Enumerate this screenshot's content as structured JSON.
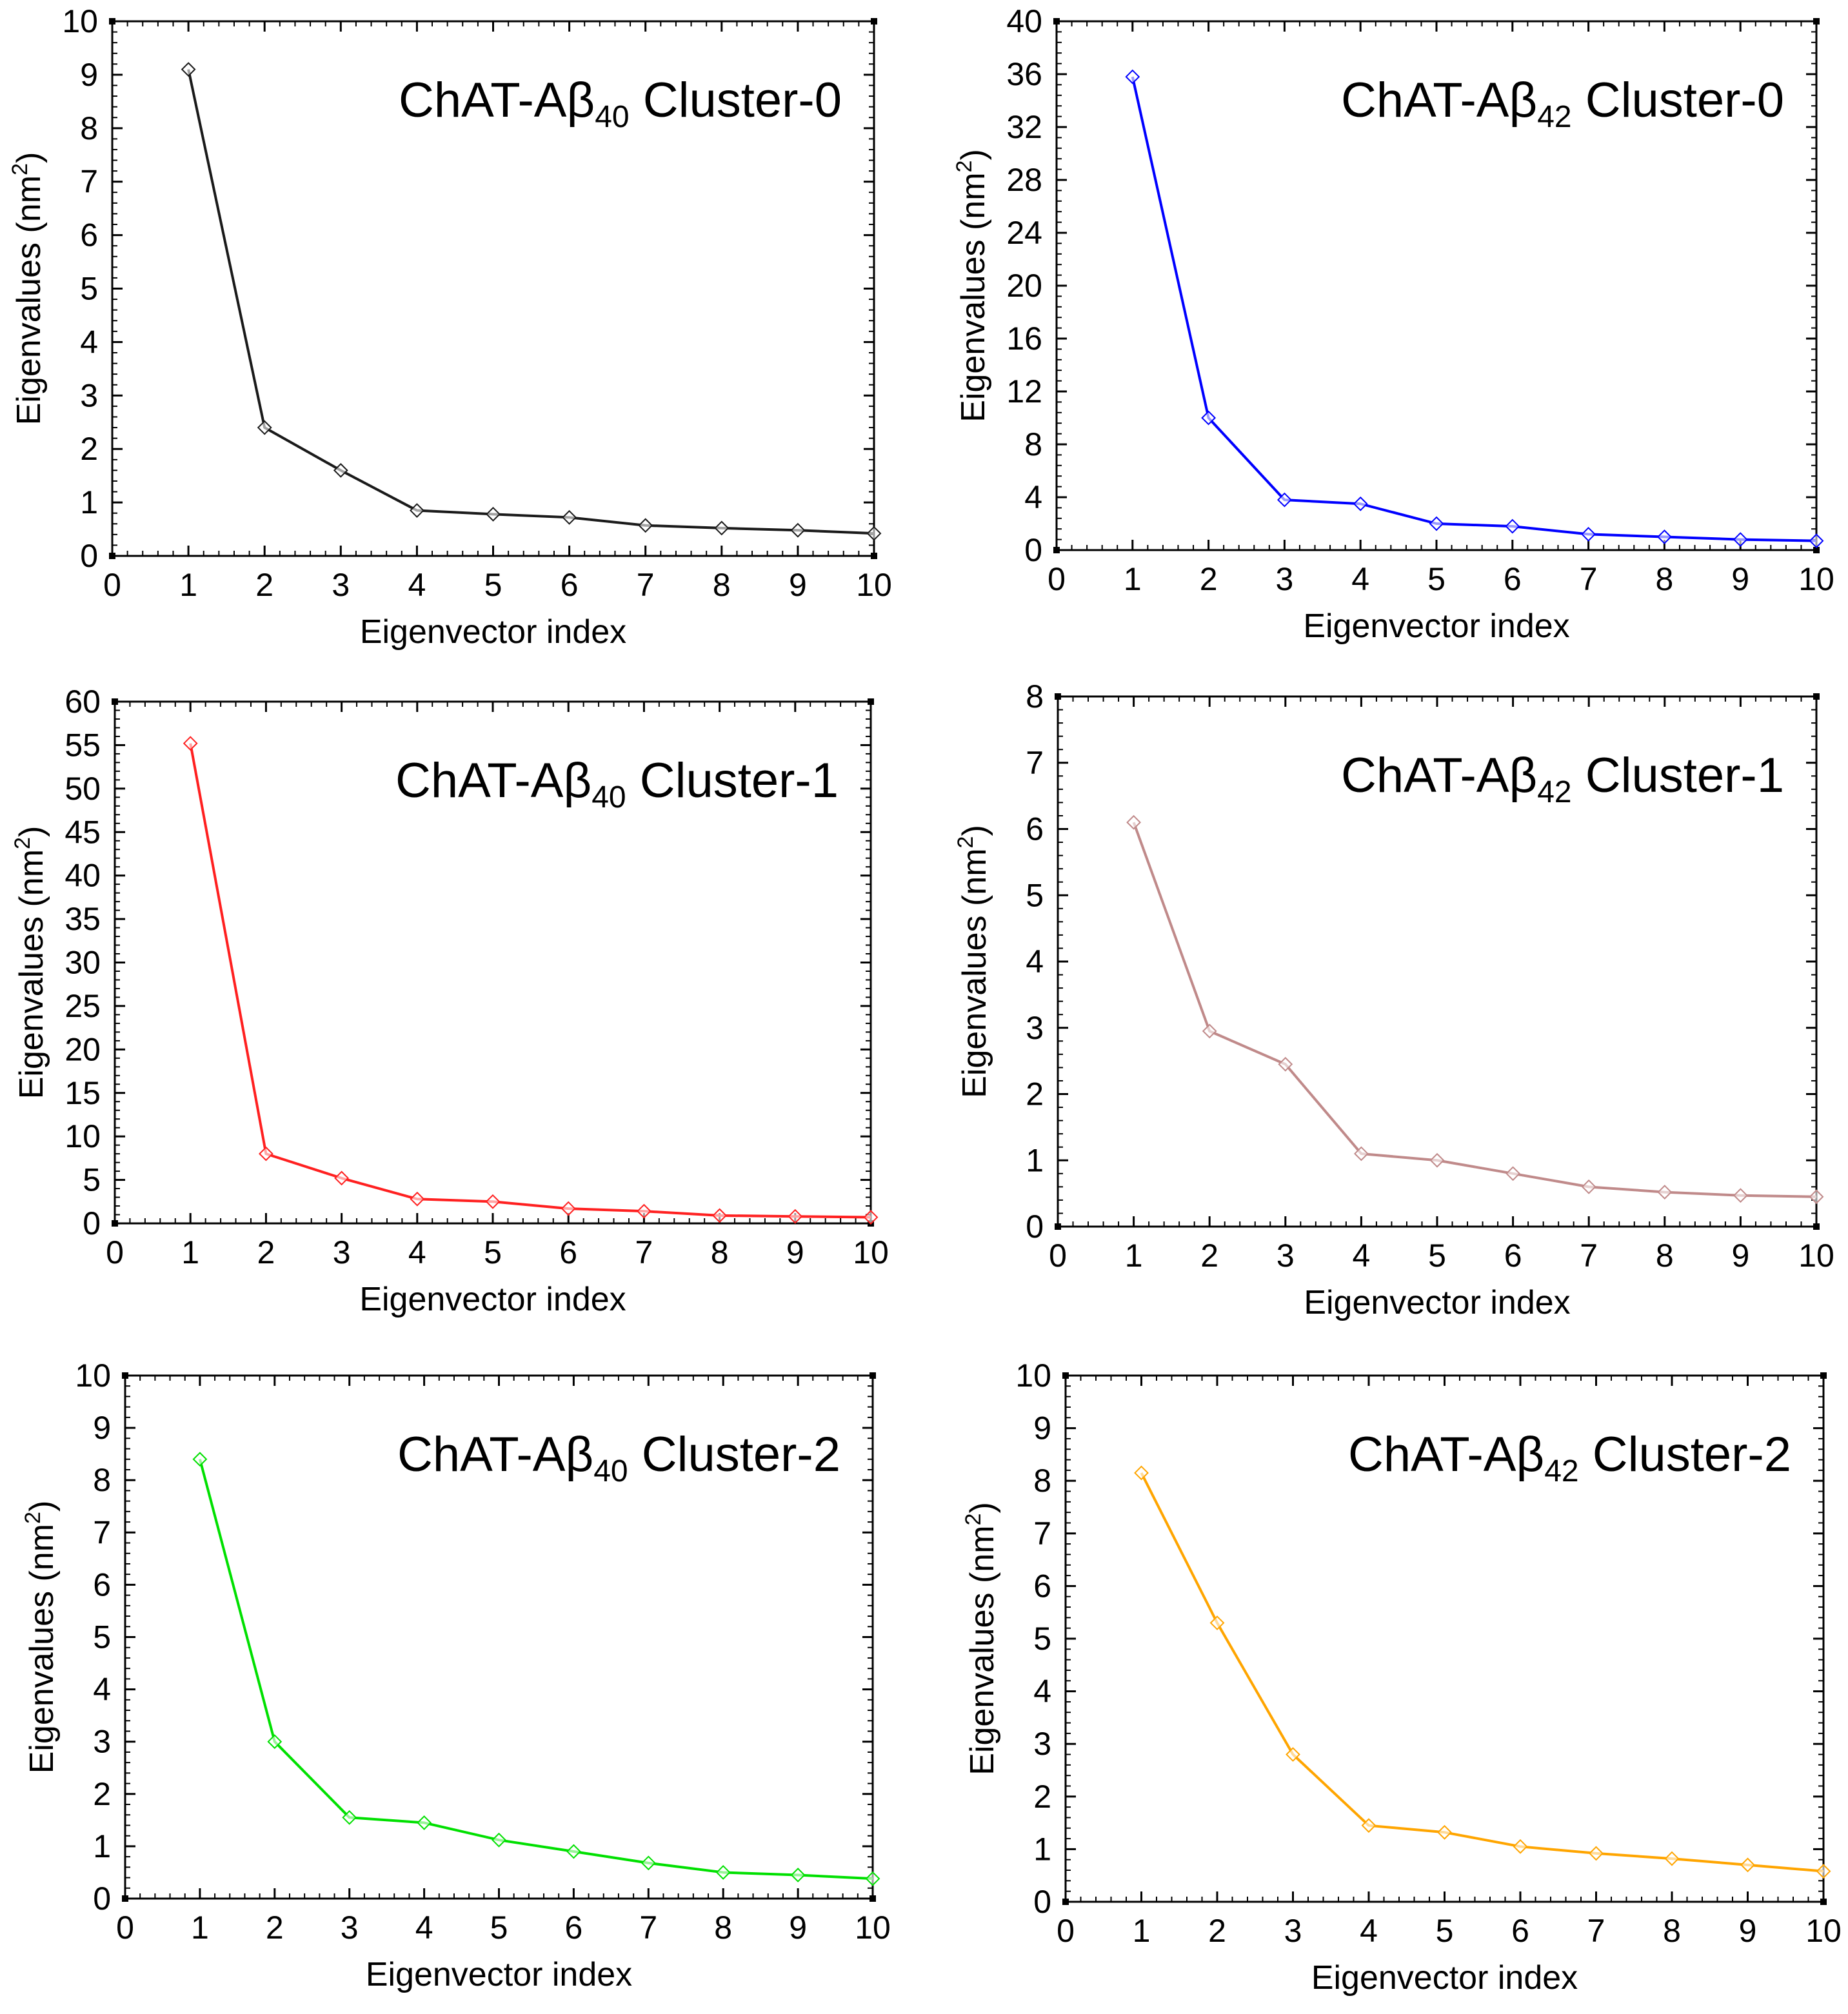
{
  "chart_data": [
    {
      "type": "line",
      "title_main": "ChAT-Aβ",
      "title_sub": "40",
      "title_tail": " Cluster-0",
      "xlabel": "Eigenvector index",
      "ylabel": "Eigenvalues (nm",
      "ylabel_sup": "2",
      "ylabel_close": ")",
      "xlim": [
        0,
        10
      ],
      "ylim": [
        0,
        10
      ],
      "xticks": [
        "0",
        "1",
        "2",
        "3",
        "4",
        "5",
        "6",
        "7",
        "8",
        "9",
        "10"
      ],
      "yticks": [
        "0",
        "1",
        "2",
        "3",
        "4",
        "5",
        "6",
        "7",
        "8",
        "9",
        "10"
      ],
      "x": [
        1,
        2,
        3,
        4,
        5,
        6,
        7,
        8,
        9,
        10
      ],
      "values": [
        9.1,
        2.4,
        1.6,
        0.85,
        0.78,
        0.72,
        0.57,
        0.52,
        0.48,
        0.42
      ],
      "color": "#1a1a1a"
    },
    {
      "type": "line",
      "title_main": "ChAT-Aβ",
      "title_sub": "42",
      "title_tail": " Cluster-0",
      "xlabel": "Eigenvector index",
      "ylabel": "Eigenvalues (nm",
      "ylabel_sup": "2",
      "ylabel_close": ")",
      "xlim": [
        0,
        10
      ],
      "ylim": [
        0,
        40
      ],
      "xticks": [
        "0",
        "1",
        "2",
        "3",
        "4",
        "5",
        "6",
        "7",
        "8",
        "9",
        "10"
      ],
      "yticks": [
        "0",
        "4",
        "8",
        "12",
        "16",
        "20",
        "24",
        "28",
        "32",
        "36",
        "40"
      ],
      "x": [
        1,
        2,
        3,
        4,
        5,
        6,
        7,
        8,
        9,
        10
      ],
      "values": [
        35.8,
        10.0,
        3.8,
        3.5,
        2.0,
        1.8,
        1.2,
        1.0,
        0.8,
        0.7
      ],
      "color": "#0000ff"
    },
    {
      "type": "line",
      "title_main": "ChAT-Aβ",
      "title_sub": "40",
      "title_tail": " Cluster-1",
      "xlabel": "Eigenvector index",
      "ylabel": "Eigenvalues (nm",
      "ylabel_sup": "2",
      "ylabel_close": ")",
      "xlim": [
        0,
        10
      ],
      "ylim": [
        0,
        60
      ],
      "xticks": [
        "0",
        "1",
        "2",
        "3",
        "4",
        "5",
        "6",
        "7",
        "8",
        "9",
        "10"
      ],
      "yticks": [
        "0",
        "5",
        "10",
        "15",
        "20",
        "25",
        "30",
        "35",
        "40",
        "45",
        "50",
        "55",
        "60"
      ],
      "x": [
        1,
        2,
        3,
        4,
        5,
        6,
        7,
        8,
        9,
        10
      ],
      "values": [
        55.2,
        8.0,
        5.2,
        2.8,
        2.5,
        1.7,
        1.4,
        0.9,
        0.8,
        0.7
      ],
      "color": "#ff2020"
    },
    {
      "type": "line",
      "title_main": "ChAT-Aβ",
      "title_sub": "42",
      "title_tail": " Cluster-1",
      "xlabel": "Eigenvector index",
      "ylabel": "Eigenvalues (nm",
      "ylabel_sup": "2",
      "ylabel_close": ")",
      "xlim": [
        0,
        10
      ],
      "ylim": [
        0,
        8
      ],
      "xticks": [
        "0",
        "1",
        "2",
        "3",
        "4",
        "5",
        "6",
        "7",
        "8",
        "9",
        "10"
      ],
      "yticks": [
        "0",
        "1",
        "2",
        "3",
        "4",
        "5",
        "6",
        "7",
        "8"
      ],
      "x": [
        1,
        2,
        3,
        4,
        5,
        6,
        7,
        8,
        9,
        10
      ],
      "values": [
        6.1,
        2.95,
        2.45,
        1.1,
        1.0,
        0.8,
        0.6,
        0.52,
        0.47,
        0.45
      ],
      "color": "#c08a8a"
    },
    {
      "type": "line",
      "title_main": "ChAT-Aβ",
      "title_sub": "40",
      "title_tail": " Cluster-2",
      "xlabel": "Eigenvector index",
      "ylabel": "Eigenvalues (nm",
      "ylabel_sup": "2",
      "ylabel_close": ")",
      "xlim": [
        0,
        10
      ],
      "ylim": [
        0,
        10
      ],
      "xticks": [
        "0",
        "1",
        "2",
        "3",
        "4",
        "5",
        "6",
        "7",
        "8",
        "9",
        "10"
      ],
      "yticks": [
        "0",
        "1",
        "2",
        "3",
        "4",
        "5",
        "6",
        "7",
        "8",
        "9",
        "10"
      ],
      "x": [
        1,
        2,
        3,
        4,
        5,
        6,
        7,
        8,
        9,
        10
      ],
      "values": [
        8.4,
        3.0,
        1.55,
        1.45,
        1.12,
        0.9,
        0.68,
        0.5,
        0.45,
        0.38
      ],
      "color": "#00e000"
    },
    {
      "type": "line",
      "title_main": "ChAT-Aβ",
      "title_sub": "42",
      "title_tail": " Cluster-2",
      "xlabel": "Eigenvector index",
      "ylabel": "Eigenvalues (nm",
      "ylabel_sup": "2",
      "ylabel_close": ")",
      "xlim": [
        0,
        10
      ],
      "ylim": [
        0,
        10
      ],
      "xticks": [
        "0",
        "1",
        "2",
        "3",
        "4",
        "5",
        "6",
        "7",
        "8",
        "9",
        "10"
      ],
      "yticks": [
        "0",
        "1",
        "2",
        "3",
        "4",
        "5",
        "6",
        "7",
        "8",
        "9",
        "10"
      ],
      "x": [
        1,
        2,
        3,
        4,
        5,
        6,
        7,
        8,
        9,
        10
      ],
      "values": [
        8.15,
        5.3,
        2.8,
        1.45,
        1.32,
        1.05,
        0.92,
        0.82,
        0.7,
        0.58
      ],
      "color": "#ffa500"
    }
  ]
}
